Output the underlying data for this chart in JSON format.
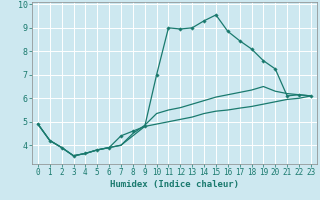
{
  "xlabel": "Humidex (Indice chaleur)",
  "background_color": "#cde8f0",
  "grid_color": "#ffffff",
  "line_color": "#1a7a6e",
  "xlim": [
    -0.5,
    23.5
  ],
  "ylim": [
    3.2,
    10.1
  ],
  "xticks": [
    0,
    1,
    2,
    3,
    4,
    5,
    6,
    7,
    8,
    9,
    10,
    11,
    12,
    13,
    14,
    15,
    16,
    17,
    18,
    19,
    20,
    21,
    22,
    23
  ],
  "yticks": [
    4,
    5,
    6,
    7,
    8,
    9,
    10
  ],
  "series1_x": [
    0,
    1,
    2,
    3,
    4,
    5,
    6,
    7,
    8,
    9,
    10,
    11,
    12,
    13,
    14,
    15,
    16,
    17,
    18,
    19,
    20,
    21,
    22,
    23
  ],
  "series1_y": [
    4.9,
    4.2,
    3.9,
    3.55,
    3.65,
    3.8,
    3.9,
    4.4,
    4.6,
    4.8,
    7.0,
    9.0,
    8.95,
    9.0,
    9.3,
    9.55,
    8.85,
    8.45,
    8.1,
    7.6,
    7.25,
    6.1,
    6.15,
    6.1
  ],
  "series2_x": [
    0,
    1,
    2,
    3,
    4,
    5,
    6,
    7,
    8,
    9,
    10,
    11,
    12,
    13,
    14,
    15,
    16,
    17,
    18,
    19,
    20,
    21,
    22,
    23
  ],
  "series2_y": [
    4.9,
    4.2,
    3.9,
    3.55,
    3.65,
    3.8,
    3.9,
    4.0,
    4.5,
    4.85,
    5.35,
    5.5,
    5.6,
    5.75,
    5.9,
    6.05,
    6.15,
    6.25,
    6.35,
    6.5,
    6.3,
    6.2,
    6.15,
    6.1
  ],
  "series3_x": [
    0,
    1,
    2,
    3,
    4,
    5,
    6,
    7,
    8,
    9,
    10,
    11,
    12,
    13,
    14,
    15,
    16,
    17,
    18,
    19,
    20,
    21,
    22,
    23
  ],
  "series3_y": [
    4.9,
    4.2,
    3.9,
    3.55,
    3.65,
    3.8,
    3.9,
    4.0,
    4.4,
    4.8,
    4.9,
    5.0,
    5.1,
    5.2,
    5.35,
    5.45,
    5.5,
    5.58,
    5.65,
    5.75,
    5.85,
    5.95,
    6.0,
    6.1
  ],
  "xlabel_fontsize": 6.5,
  "tick_fontsize": 5.5
}
